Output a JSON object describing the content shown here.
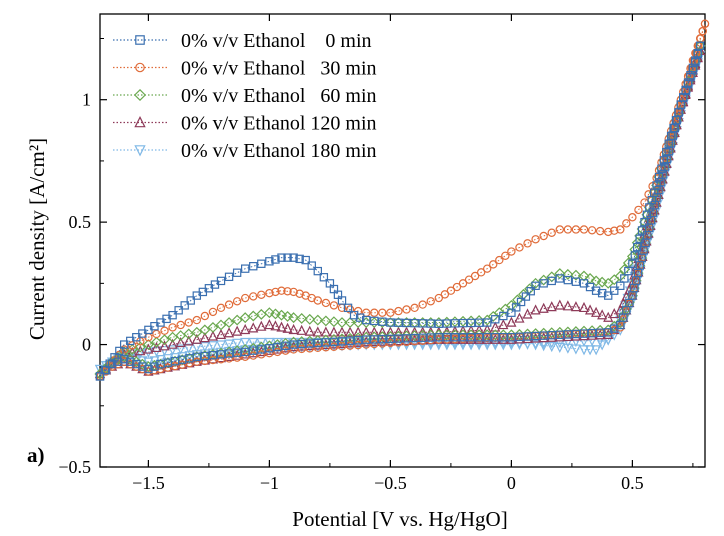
{
  "chart_data": {
    "type": "scatter",
    "xlabel": "Potential [V vs. Hg/HgO]",
    "ylabel": "Current density [A/cm²]",
    "panel_label": "a)",
    "xlim": [
      -1.7,
      0.8
    ],
    "ylim": [
      -0.5,
      1.35
    ],
    "x_ticks": [
      -1.5,
      -1,
      -0.5,
      0,
      0.5
    ],
    "x_tick_labels": [
      "−1.5",
      "−1",
      "−0.5",
      "0",
      "0.5"
    ],
    "y_ticks": [
      -0.5,
      0,
      0.5,
      1
    ],
    "y_tick_labels": [
      "−0.5",
      "0",
      "0.5",
      "1"
    ],
    "grid": false,
    "legend": "top-left",
    "series": [
      {
        "name": "0% v/v Ethanol    0 min",
        "color": "#3a6fb0",
        "marker": "square",
        "forward": [
          [
            -1.7,
            -0.13
          ],
          [
            -1.6,
            0.0
          ],
          [
            -1.5,
            0.06
          ],
          [
            -1.4,
            0.12
          ],
          [
            -1.3,
            0.2
          ],
          [
            -1.2,
            0.26
          ],
          [
            -1.1,
            0.31
          ],
          [
            -1.0,
            0.34
          ],
          [
            -0.95,
            0.355
          ],
          [
            -0.9,
            0.355
          ],
          [
            -0.85,
            0.345
          ],
          [
            -0.8,
            0.3
          ],
          [
            -0.75,
            0.25
          ],
          [
            -0.7,
            0.18
          ],
          [
            -0.65,
            0.12
          ],
          [
            -0.6,
            0.1
          ],
          [
            -0.5,
            0.09
          ],
          [
            -0.3,
            0.085
          ],
          [
            -0.1,
            0.09
          ],
          [
            0.0,
            0.13
          ],
          [
            0.1,
            0.24
          ],
          [
            0.2,
            0.27
          ],
          [
            0.3,
            0.25
          ],
          [
            0.35,
            0.22
          ],
          [
            0.4,
            0.2
          ],
          [
            0.45,
            0.24
          ],
          [
            0.5,
            0.33
          ],
          [
            0.55,
            0.5
          ],
          [
            0.6,
            0.65
          ],
          [
            0.65,
            0.82
          ],
          [
            0.7,
            0.98
          ],
          [
            0.75,
            1.12
          ],
          [
            0.78,
            1.22
          ]
        ],
        "reverse": [
          [
            0.78,
            1.22
          ],
          [
            0.7,
            0.98
          ],
          [
            0.6,
            0.6
          ],
          [
            0.5,
            0.2
          ],
          [
            0.45,
            0.08
          ],
          [
            0.4,
            0.05
          ],
          [
            0.2,
            0.04
          ],
          [
            0.0,
            0.03
          ],
          [
            -0.3,
            0.03
          ],
          [
            -0.6,
            0.02
          ],
          [
            -0.9,
            0.0
          ],
          [
            -1.1,
            -0.03
          ],
          [
            -1.3,
            -0.05
          ],
          [
            -1.45,
            -0.08
          ],
          [
            -1.5,
            -0.1
          ],
          [
            -1.55,
            -0.08
          ],
          [
            -1.6,
            -0.06
          ],
          [
            -1.65,
            -0.08
          ],
          [
            -1.7,
            -0.13
          ]
        ]
      },
      {
        "name": "0% v/v Ethanol   30 min",
        "color": "#e06c3a",
        "marker": "circle",
        "forward": [
          [
            -1.7,
            -0.13
          ],
          [
            -1.6,
            -0.02
          ],
          [
            -1.5,
            0.03
          ],
          [
            -1.4,
            0.07
          ],
          [
            -1.3,
            0.1
          ],
          [
            -1.2,
            0.15
          ],
          [
            -1.1,
            0.19
          ],
          [
            -1.0,
            0.21
          ],
          [
            -0.95,
            0.22
          ],
          [
            -0.9,
            0.215
          ],
          [
            -0.85,
            0.2
          ],
          [
            -0.8,
            0.18
          ],
          [
            -0.7,
            0.15
          ],
          [
            -0.6,
            0.13
          ],
          [
            -0.5,
            0.13
          ],
          [
            -0.4,
            0.15
          ],
          [
            -0.3,
            0.19
          ],
          [
            -0.2,
            0.25
          ],
          [
            -0.1,
            0.31
          ],
          [
            0.0,
            0.38
          ],
          [
            0.1,
            0.43
          ],
          [
            0.2,
            0.47
          ],
          [
            0.3,
            0.47
          ],
          [
            0.4,
            0.46
          ],
          [
            0.45,
            0.47
          ],
          [
            0.5,
            0.52
          ],
          [
            0.55,
            0.58
          ],
          [
            0.6,
            0.68
          ],
          [
            0.65,
            0.84
          ],
          [
            0.7,
            1.0
          ],
          [
            0.75,
            1.16
          ],
          [
            0.8,
            1.31
          ]
        ],
        "reverse": [
          [
            0.8,
            1.31
          ],
          [
            0.7,
            0.98
          ],
          [
            0.6,
            0.6
          ],
          [
            0.5,
            0.2
          ],
          [
            0.45,
            0.07
          ],
          [
            0.4,
            0.05
          ],
          [
            0.2,
            0.04
          ],
          [
            0.0,
            0.03
          ],
          [
            -0.3,
            0.02
          ],
          [
            -0.6,
            0.0
          ],
          [
            -0.9,
            -0.02
          ],
          [
            -1.1,
            -0.05
          ],
          [
            -1.3,
            -0.07
          ],
          [
            -1.45,
            -0.1
          ],
          [
            -1.5,
            -0.11
          ],
          [
            -1.55,
            -0.09
          ],
          [
            -1.6,
            -0.07
          ],
          [
            -1.65,
            -0.09
          ],
          [
            -1.7,
            -0.13
          ]
        ]
      },
      {
        "name": "0% v/v Ethanol   60 min",
        "color": "#6aa84f",
        "marker": "diamond",
        "forward": [
          [
            -1.7,
            -0.12
          ],
          [
            -1.6,
            -0.03
          ],
          [
            -1.5,
            0.0
          ],
          [
            -1.4,
            0.03
          ],
          [
            -1.3,
            0.05
          ],
          [
            -1.2,
            0.08
          ],
          [
            -1.1,
            0.11
          ],
          [
            -1.0,
            0.13
          ],
          [
            -0.95,
            0.12
          ],
          [
            -0.9,
            0.11
          ],
          [
            -0.8,
            0.1
          ],
          [
            -0.7,
            0.09
          ],
          [
            -0.6,
            0.09
          ],
          [
            -0.5,
            0.09
          ],
          [
            -0.3,
            0.09
          ],
          [
            -0.1,
            0.1
          ],
          [
            0.0,
            0.16
          ],
          [
            0.1,
            0.25
          ],
          [
            0.2,
            0.29
          ],
          [
            0.3,
            0.28
          ],
          [
            0.35,
            0.26
          ],
          [
            0.4,
            0.25
          ],
          [
            0.45,
            0.28
          ],
          [
            0.5,
            0.36
          ],
          [
            0.55,
            0.5
          ],
          [
            0.6,
            0.65
          ],
          [
            0.65,
            0.82
          ],
          [
            0.7,
            0.98
          ],
          [
            0.75,
            1.13
          ],
          [
            0.78,
            1.22
          ]
        ],
        "reverse": [
          [
            0.78,
            1.22
          ],
          [
            0.7,
            0.98
          ],
          [
            0.6,
            0.6
          ],
          [
            0.5,
            0.2
          ],
          [
            0.45,
            0.09
          ],
          [
            0.4,
            0.06
          ],
          [
            0.2,
            0.05
          ],
          [
            0.0,
            0.04
          ],
          [
            -0.3,
            0.04
          ],
          [
            -0.6,
            0.03
          ],
          [
            -0.9,
            0.01
          ],
          [
            -1.1,
            -0.02
          ],
          [
            -1.3,
            -0.05
          ],
          [
            -1.45,
            -0.08
          ],
          [
            -1.5,
            -0.09
          ],
          [
            -1.55,
            -0.07
          ],
          [
            -1.6,
            -0.05
          ],
          [
            -1.65,
            -0.07
          ],
          [
            -1.7,
            -0.12
          ]
        ]
      },
      {
        "name": "0% v/v Ethanol 120 min",
        "color": "#8e3a59",
        "marker": "triangle-up",
        "forward": [
          [
            -1.7,
            -0.12
          ],
          [
            -1.6,
            -0.04
          ],
          [
            -1.5,
            -0.02
          ],
          [
            -1.4,
            0.0
          ],
          [
            -1.3,
            0.02
          ],
          [
            -1.2,
            0.04
          ],
          [
            -1.1,
            0.06
          ],
          [
            -1.0,
            0.08
          ],
          [
            -0.95,
            0.07
          ],
          [
            -0.9,
            0.06
          ],
          [
            -0.8,
            0.05
          ],
          [
            -0.7,
            0.05
          ],
          [
            -0.6,
            0.05
          ],
          [
            -0.5,
            0.05
          ],
          [
            -0.3,
            0.05
          ],
          [
            -0.1,
            0.06
          ],
          [
            0.0,
            0.09
          ],
          [
            0.1,
            0.14
          ],
          [
            0.2,
            0.16
          ],
          [
            0.3,
            0.15
          ],
          [
            0.35,
            0.13
          ],
          [
            0.4,
            0.11
          ],
          [
            0.45,
            0.14
          ],
          [
            0.5,
            0.25
          ],
          [
            0.55,
            0.45
          ],
          [
            0.6,
            0.62
          ],
          [
            0.65,
            0.8
          ],
          [
            0.7,
            0.96
          ],
          [
            0.75,
            1.12
          ],
          [
            0.78,
            1.2
          ]
        ],
        "reverse": [
          [
            0.78,
            1.2
          ],
          [
            0.7,
            0.96
          ],
          [
            0.6,
            0.58
          ],
          [
            0.5,
            0.2
          ],
          [
            0.45,
            0.08
          ],
          [
            0.4,
            0.04
          ],
          [
            0.2,
            0.03
          ],
          [
            0.0,
            0.02
          ],
          [
            -0.3,
            0.02
          ],
          [
            -0.6,
            0.01
          ],
          [
            -0.9,
            -0.01
          ],
          [
            -1.1,
            -0.04
          ],
          [
            -1.3,
            -0.07
          ],
          [
            -1.45,
            -0.1
          ],
          [
            -1.5,
            -0.11
          ],
          [
            -1.55,
            -0.09
          ],
          [
            -1.6,
            -0.07
          ],
          [
            -1.65,
            -0.09
          ],
          [
            -1.7,
            -0.12
          ]
        ]
      },
      {
        "name": "0% v/v Ethanol 180 min",
        "color": "#7fb8e6",
        "marker": "triangle-down",
        "forward": [
          [
            -1.7,
            -0.1
          ],
          [
            -1.6,
            -0.04
          ],
          [
            -1.5,
            -0.03
          ],
          [
            -1.4,
            -0.02
          ],
          [
            -1.3,
            -0.01
          ],
          [
            -1.2,
            0.0
          ],
          [
            -1.1,
            0.01
          ],
          [
            -1.0,
            0.01
          ],
          [
            -0.9,
            0.01
          ],
          [
            -0.8,
            0.01
          ],
          [
            -0.6,
            0.01
          ],
          [
            -0.4,
            0.01
          ],
          [
            -0.2,
            0.01
          ],
          [
            0.0,
            0.01
          ],
          [
            0.1,
            0.0
          ],
          [
            0.2,
            -0.01
          ],
          [
            0.3,
            -0.02
          ],
          [
            0.35,
            -0.02
          ],
          [
            0.4,
            0.02
          ],
          [
            0.45,
            0.1
          ],
          [
            0.5,
            0.25
          ],
          [
            0.55,
            0.43
          ],
          [
            0.6,
            0.6
          ],
          [
            0.65,
            0.78
          ],
          [
            0.7,
            0.94
          ],
          [
            0.75,
            1.1
          ],
          [
            0.78,
            1.18
          ]
        ],
        "reverse": [
          [
            0.78,
            1.18
          ],
          [
            0.7,
            0.94
          ],
          [
            0.6,
            0.55
          ],
          [
            0.5,
            0.18
          ],
          [
            0.45,
            0.06
          ],
          [
            0.4,
            0.02
          ],
          [
            0.2,
            0.01
          ],
          [
            0.0,
            0.0
          ],
          [
            -0.3,
            0.0
          ],
          [
            -0.6,
            0.0
          ],
          [
            -0.9,
            -0.01
          ],
          [
            -1.1,
            -0.02
          ],
          [
            -1.3,
            -0.04
          ],
          [
            -1.45,
            -0.06
          ],
          [
            -1.5,
            -0.07
          ],
          [
            -1.55,
            -0.06
          ],
          [
            -1.6,
            -0.05
          ],
          [
            -1.65,
            -0.07
          ],
          [
            -1.7,
            -0.1
          ]
        ]
      }
    ]
  }
}
